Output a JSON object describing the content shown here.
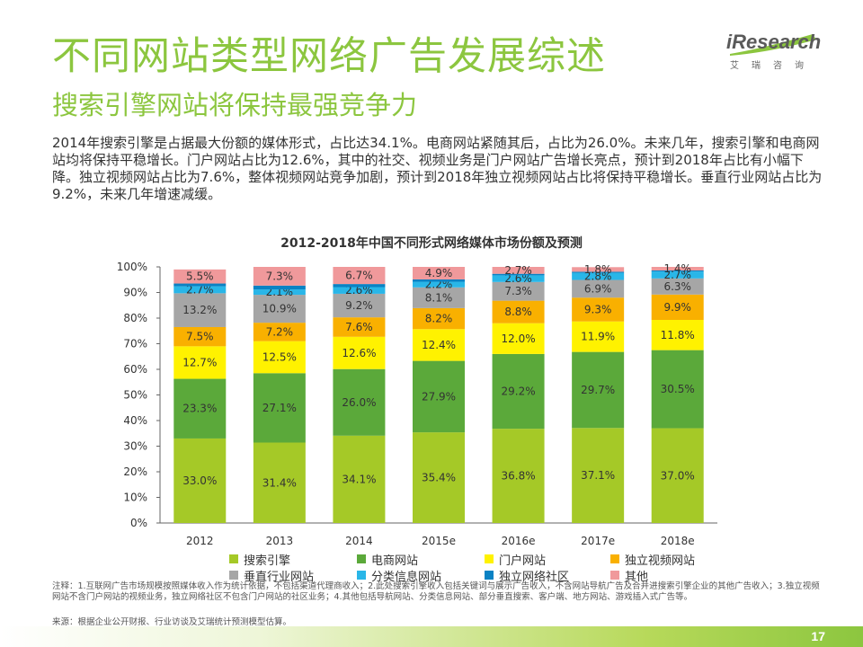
{
  "header": {
    "title": "不同网站类型网络广告发展综述",
    "subtitle": "搜索引擎网站将保持最强竞争力"
  },
  "logo": {
    "brand": "iResearch",
    "sub": "艾瑞咨询"
  },
  "intro": "2014年搜索引擎是占据最大份额的媒体形式，占比达34.1%。电商网站紧随其后，占比为26.0%。未来几年，搜索引擎和电商网站均将保持平稳增长。门户网站占比为12.6%，其中的社交、视频业务是门户网站广告增长亮点，预计到2018年占比有小幅下降。独立视频网站占比为7.6%，整体视频网站竞争加剧，预计到2018年独立视频网站占比将保持平稳增长。垂直行业网站占比为9.2%，未来几年增速减缓。",
  "chart_data": {
    "type": "bar",
    "stacked": true,
    "title": "2012-2018年中国不同形式网络媒体市场份额及预测",
    "categories": [
      "2012",
      "2013",
      "2014",
      "2015e",
      "2016e",
      "2017e",
      "2018e"
    ],
    "y_ticks": [
      "0%",
      "10%",
      "20%",
      "30%",
      "40%",
      "50%",
      "60%",
      "70%",
      "80%",
      "90%",
      "100%"
    ],
    "ylim": [
      0,
      100
    ],
    "grid": false,
    "legend_position": "bottom",
    "series": [
      {
        "name": "搜索引擎",
        "color": "#a5c927",
        "values": [
          33.0,
          31.4,
          34.1,
          35.4,
          36.8,
          37.1,
          37.0
        ],
        "labels": [
          "33.0%",
          "31.4%",
          "34.1%",
          "35.4%",
          "36.8%",
          "37.1%",
          "37.0%"
        ]
      },
      {
        "name": "电商网站",
        "color": "#5ba93a",
        "values": [
          23.3,
          27.1,
          26.0,
          27.9,
          29.2,
          29.7,
          30.5
        ],
        "labels": [
          "23.3%",
          "27.1%",
          "26.0%",
          "27.9%",
          "29.2%",
          "29.7%",
          "30.5%"
        ]
      },
      {
        "name": "门户网站",
        "color": "#fff200",
        "values": [
          12.7,
          12.5,
          12.6,
          12.4,
          12.0,
          11.9,
          11.8
        ],
        "labels": [
          "12.7%",
          "12.5%",
          "12.6%",
          "12.4%",
          "12.0%",
          "11.9%",
          "11.8%"
        ]
      },
      {
        "name": "独立视频网站",
        "color": "#f9b000",
        "values": [
          7.5,
          7.2,
          7.6,
          8.2,
          8.8,
          9.3,
          9.9
        ],
        "labels": [
          "7.5%",
          "7.2%",
          "7.6%",
          "8.2%",
          "8.8%",
          "9.3%",
          "9.9%"
        ]
      },
      {
        "name": "垂直行业网站",
        "color": "#a6a6a6",
        "values": [
          13.2,
          10.9,
          9.2,
          8.1,
          7.3,
          6.9,
          6.3
        ],
        "labels": [
          "13.2%",
          "10.9%",
          "9.2%",
          "8.1%",
          "7.3%",
          "6.9%",
          "6.3%"
        ]
      },
      {
        "name": "分类信息网站",
        "color": "#29b6e8",
        "values": [
          2.7,
          2.1,
          2.6,
          2.2,
          2.6,
          2.8,
          2.7
        ],
        "labels": [
          "2.7%",
          "2.1%",
          "2.6%",
          "2.2%",
          "2.6%",
          "2.8%",
          "2.7%"
        ]
      },
      {
        "name": "独立网络社区",
        "color": "#0a82c4",
        "values": [
          1.1,
          1.5,
          1.2,
          0.9,
          0.6,
          0.4,
          0.4
        ],
        "labels": [
          "",
          "",
          "",
          "",
          "",
          "",
          ""
        ]
      },
      {
        "name": "其他",
        "color": "#f0999b",
        "values": [
          5.5,
          7.3,
          6.7,
          4.9,
          2.7,
          1.8,
          1.4
        ],
        "labels": [
          "5.5%",
          "7.3%",
          "6.7%",
          "4.9%",
          "2.7%",
          "1.8%",
          "1.4%"
        ]
      }
    ]
  },
  "notes": "注释：1.互联网广告市场规模按照媒体收入作为统计依据，不包括渠道代理商收入；2.此处搜索引擎收入包括关键词与展示广告收入，不含网站导航广告及合并进搜索引擎企业的其他广告收入；3.独立视频网站不含门户网站的视频业务，独立网络社区不包含门户网站的社区业务；4.其他包括导航网站、分类信息网站、部分垂直搜索、客户端、地方网站、游戏插入式广告等。",
  "source": "来源：根据企业公开财报、行业访谈及艾瑞统计预测模型估算。",
  "page_number": "17"
}
